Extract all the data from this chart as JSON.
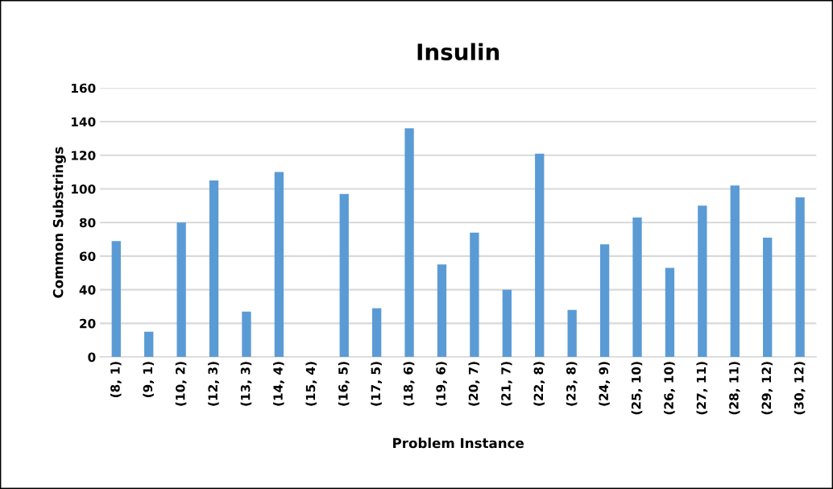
{
  "chart_data": {
    "type": "bar",
    "title": "Insulin",
    "xlabel": "Problem Instance",
    "ylabel": "Common Substrings",
    "categories": [
      "(8, 1)",
      "(9, 1)",
      "(10, 2)",
      "(12, 3)",
      "(13, 3)",
      "(14, 4)",
      "(15, 4)",
      "(16, 5)",
      "(17, 5)",
      "(18, 6)",
      "(19, 6)",
      "(20, 7)",
      "(21, 7)",
      "(22, 8)",
      "(23, 8)",
      "(24, 9)",
      "(25, 10)",
      "(26, 10)",
      "(27, 11)",
      "(28, 11)",
      "(29, 12)",
      "(30, 12)"
    ],
    "values": [
      69,
      15,
      80,
      105,
      27,
      110,
      0,
      97,
      29,
      136,
      55,
      74,
      40,
      121,
      28,
      67,
      83,
      53,
      90,
      102,
      71,
      95
    ],
    "color": "#5b9bd5",
    "ylim": [
      0,
      160
    ],
    "yticks": [
      0,
      20,
      40,
      60,
      80,
      100,
      120,
      140,
      160
    ],
    "grid": "y",
    "legend": false
  }
}
